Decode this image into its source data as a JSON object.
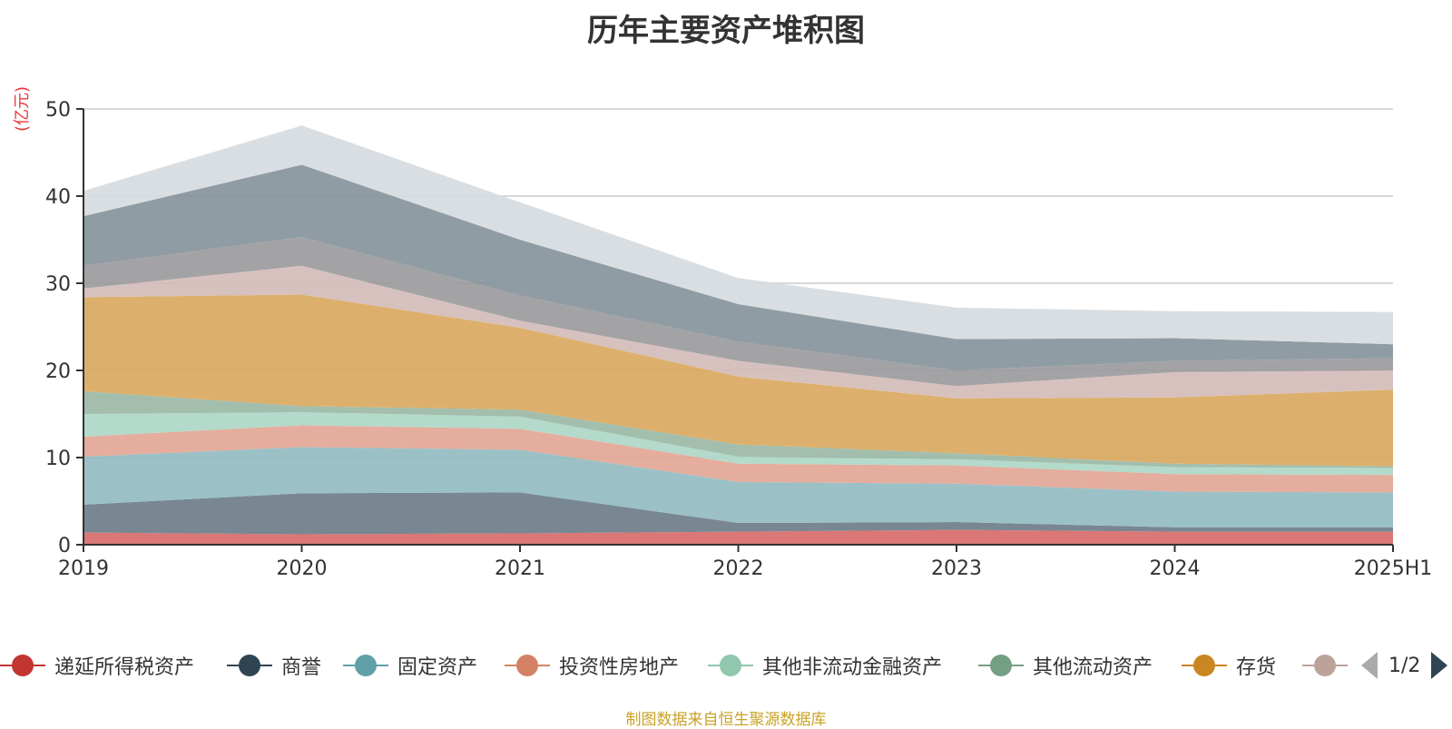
{
  "title": "历年主要资产堆积图",
  "unit_label": "(亿元)",
  "source_note": "制图数据来自恒生聚源数据库",
  "legend_pager": "1/2",
  "chart_data": {
    "type": "area",
    "stacked": true,
    "title": "历年主要资产堆积图",
    "ylabel": "(亿元)",
    "ylim": [
      0,
      50
    ],
    "yticks": [
      0,
      10,
      20,
      30,
      40,
      50
    ],
    "grid": true,
    "legend_position": "bottom",
    "categories": [
      "2019",
      "2020",
      "2021",
      "2022",
      "2023",
      "2024",
      "2025H1"
    ],
    "series": [
      {
        "name": "递延所得税资产",
        "color": "#d86b6b",
        "values": [
          1.4,
          1.2,
          1.3,
          1.5,
          1.7,
          1.5,
          1.5
        ]
      },
      {
        "name": "商誉",
        "color": "#6e7d89",
        "values": [
          3.2,
          4.7,
          4.7,
          1.0,
          0.9,
          0.5,
          0.5
        ]
      },
      {
        "name": "固定资产",
        "color": "#92bcc2",
        "values": [
          5.5,
          5.3,
          4.9,
          4.7,
          4.4,
          4.1,
          4.0
        ]
      },
      {
        "name": "投资性房地产",
        "color": "#e2a695",
        "values": [
          2.3,
          2.5,
          2.4,
          2.1,
          2.1,
          2.0,
          2.0
        ]
      },
      {
        "name": "其他非流动金融资产",
        "color": "#acd7c5",
        "values": [
          2.6,
          1.5,
          1.4,
          0.8,
          0.7,
          0.8,
          0.8
        ]
      },
      {
        "name": "其他流动资产",
        "color": "#9bb9a6",
        "values": [
          2.6,
          0.7,
          0.8,
          1.4,
          0.7,
          0.4,
          0.2
        ]
      },
      {
        "name": "存货",
        "color": "#d9a960",
        "values": [
          10.8,
          12.8,
          9.4,
          7.8,
          6.3,
          7.6,
          8.8
        ]
      },
      {
        "name": "",
        "color": "#d4bcb8",
        "values": [
          1.0,
          3.3,
          0.8,
          1.8,
          1.4,
          2.9,
          2.2
        ]
      },
      {
        "name": "",
        "color": "#9b9b9e",
        "values": [
          2.6,
          3.3,
          2.9,
          2.2,
          1.8,
          1.3,
          1.4
        ]
      },
      {
        "name": "",
        "color": "#87949b",
        "values": [
          5.7,
          8.3,
          6.4,
          4.3,
          3.6,
          2.6,
          1.6
        ]
      },
      {
        "name": "",
        "color": "#d6dbe0",
        "values": [
          2.9,
          4.5,
          4.3,
          3.0,
          3.6,
          3.1,
          3.7
        ]
      }
    ]
  },
  "legend": [
    {
      "label": "递延所得税资产",
      "color": "#c23531"
    },
    {
      "label": "商誉",
      "color": "#2f4554"
    },
    {
      "label": "固定资产",
      "color": "#61a0a8"
    },
    {
      "label": "投资性房地产",
      "color": "#d48265"
    },
    {
      "label": "其他非流动金融资产",
      "color": "#91c7ae"
    },
    {
      "label": "其他流动资产",
      "color": "#749f83"
    },
    {
      "label": "存货",
      "color": "#ca8622"
    },
    {
      "label": "",
      "color": "#bda29a"
    }
  ]
}
